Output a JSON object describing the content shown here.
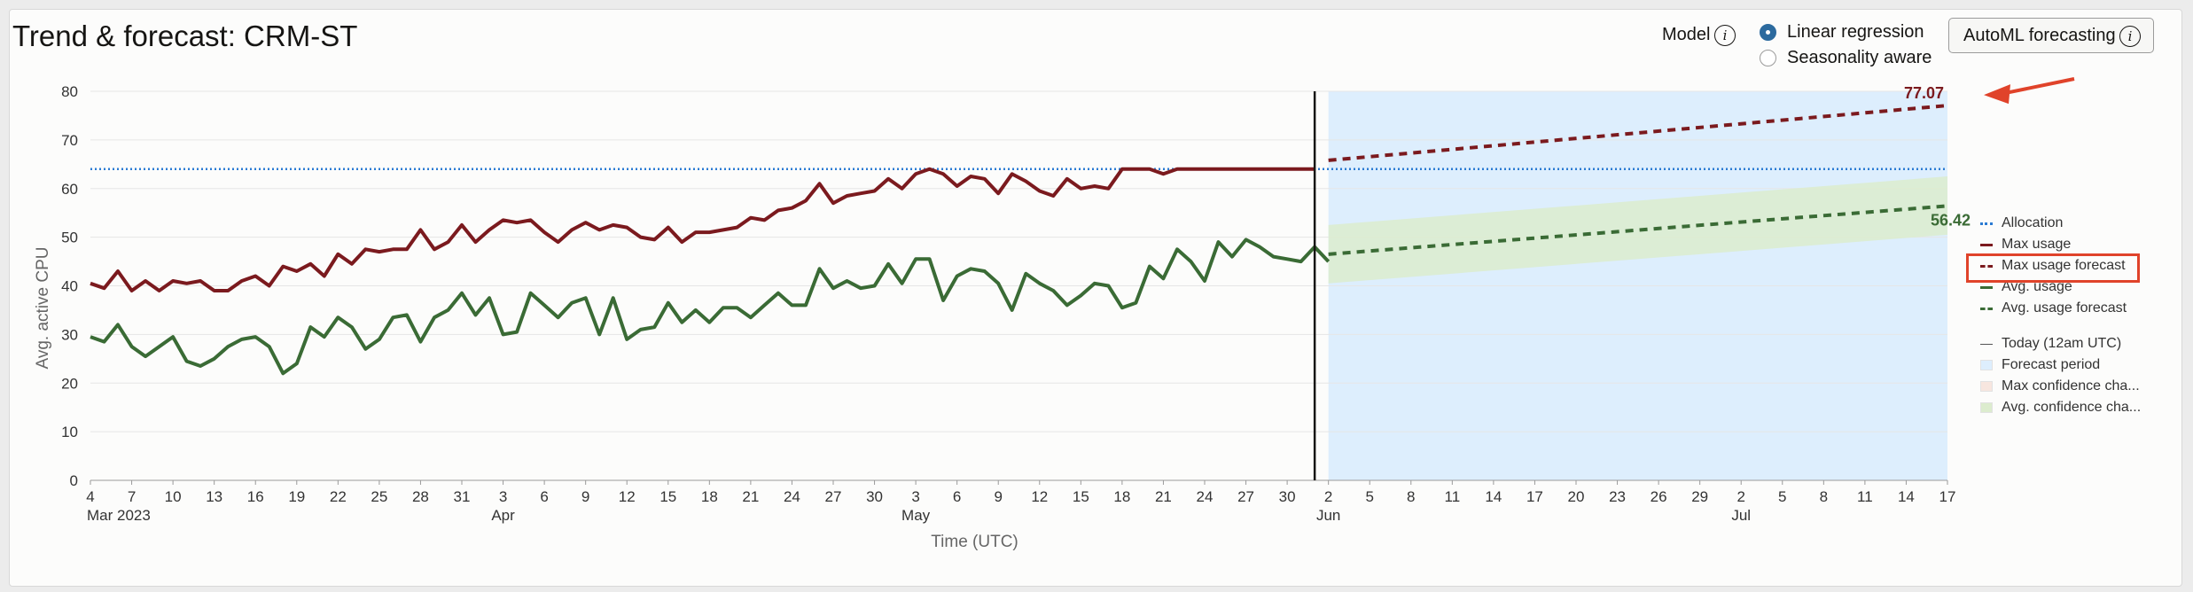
{
  "header": {
    "title": "Trend & forecast: CRM-ST",
    "model_label": "Model",
    "model_options": [
      {
        "label": "Linear regression",
        "selected": true
      },
      {
        "label": "Seasonality aware",
        "selected": false
      }
    ],
    "automl_button_label": "AutoML forecasting"
  },
  "colors": {
    "max_usage": "#7b1a1e",
    "avg_usage": "#3a6b35",
    "allocation": "#2b7bd3",
    "forecast_period": "#ddeefd",
    "avg_confidence": "#dcecce",
    "today_line": "#161513",
    "annotation_arrow": "#e0432a"
  },
  "legend": [
    {
      "label": "Allocation",
      "style": "dotted-line",
      "color": "#2b7bd3"
    },
    {
      "label": "Max usage",
      "style": "line",
      "color": "#7b1a1e"
    },
    {
      "label": "Max usage forecast",
      "style": "dashed-line",
      "color": "#7b1a1e",
      "highlighted": true
    },
    {
      "label": "Avg. usage",
      "style": "line",
      "color": "#3a6b35"
    },
    {
      "label": "Avg. usage forecast",
      "style": "dashed-line",
      "color": "#3a6b35"
    },
    {
      "label": "Today (12am UTC)",
      "style": "thin-line",
      "color": "#555555"
    },
    {
      "label": "Forecast period",
      "style": "box",
      "color": "#ddeefd"
    },
    {
      "label": "Max confidence cha...",
      "style": "box",
      "color": "#f7e6df"
    },
    {
      "label": "Avg. confidence cha...",
      "style": "box",
      "color": "#dcecce"
    }
  ],
  "chart_data": {
    "type": "line",
    "ylabel": "Avg. active CPU",
    "xlabel": "Time (UTC)",
    "ylim": [
      0,
      80
    ],
    "yticks": [
      0,
      10,
      20,
      30,
      40,
      50,
      60,
      70,
      80
    ],
    "x_start": "2023-03-04",
    "x_end": "2023-07-17",
    "today": "2023-06-01",
    "forecast_period": [
      "2023-06-02",
      "2023-07-17"
    ],
    "x_tick_labels": [
      "4",
      "7",
      "10",
      "13",
      "16",
      "19",
      "22",
      "25",
      "28",
      "31",
      "3",
      "6",
      "9",
      "12",
      "15",
      "18",
      "21",
      "24",
      "27",
      "30",
      "3",
      "6",
      "9",
      "12",
      "15",
      "18",
      "21",
      "24",
      "27",
      "30",
      "2",
      "5",
      "8",
      "11",
      "14",
      "17",
      "20",
      "23",
      "26",
      "29",
      "2",
      "5",
      "8",
      "11",
      "14",
      "17"
    ],
    "month_labels": [
      {
        "date": "2023-03-04",
        "label": "Mar 2023"
      },
      {
        "date": "2023-04-03",
        "label": "Apr"
      },
      {
        "date": "2023-05-03",
        "label": "May"
      },
      {
        "date": "2023-06-02",
        "label": "Jun"
      },
      {
        "date": "2023-07-02",
        "label": "Jul"
      }
    ],
    "allocation": 64,
    "series": [
      {
        "name": "Max usage",
        "values": [
          40.5,
          39.5,
          43,
          39,
          41,
          39,
          41,
          40.5,
          41,
          39,
          39,
          41,
          42,
          40,
          44,
          43,
          44.5,
          42,
          46.5,
          44.5,
          47.5,
          47,
          47.5,
          47.5,
          51.5,
          47.5,
          49,
          52.5,
          49,
          51.5,
          53.5,
          53,
          53.5,
          51,
          49,
          51.5,
          53,
          51.5,
          52.5,
          52,
          50,
          49.5,
          52,
          49,
          51,
          51,
          51.5,
          52,
          54,
          53.5,
          55.5,
          56,
          57.5,
          61,
          57,
          58.5,
          59,
          59.5,
          62,
          60,
          63,
          64,
          63,
          60.5,
          62.5,
          62,
          59,
          63,
          61.5,
          59.5,
          58.5,
          62,
          60,
          60.5,
          60,
          64,
          64,
          64,
          63,
          64,
          64,
          64,
          64,
          64,
          64,
          64,
          64,
          64,
          64,
          64
        ]
      },
      {
        "name": "Avg. usage",
        "values": [
          29.5,
          28.5,
          32,
          27.5,
          25.5,
          27.5,
          29.5,
          24.5,
          23.5,
          25,
          27.5,
          29,
          29.5,
          27.5,
          22,
          24,
          31.5,
          29.5,
          33.5,
          31.5,
          27,
          29,
          33.5,
          34,
          28.5,
          33.5,
          35,
          38.5,
          34,
          37.5,
          30,
          30.5,
          38.5,
          36,
          33.5,
          36.5,
          37.5,
          30,
          37.5,
          29,
          31,
          31.5,
          36.5,
          32.5,
          35,
          32.5,
          35.5,
          35.5,
          33.5,
          36,
          38.5,
          36,
          36,
          43.5,
          39.5,
          41,
          39.5,
          40,
          44.5,
          40.5,
          45.5,
          45.5,
          37,
          42,
          43.5,
          43,
          40.5,
          35,
          42.5,
          40.5,
          39,
          36,
          38,
          40.5,
          40,
          35.5,
          36.5,
          44,
          41.5,
          47.5,
          45,
          41,
          49,
          46,
          49.5,
          48,
          46,
          45.5,
          45,
          48,
          45
        ]
      },
      {
        "name": "Max usage forecast",
        "start_value": 65.8,
        "end_value": 77.07
      },
      {
        "name": "Avg. usage forecast",
        "start_value": 46.5,
        "end_value": 56.42,
        "band_start": [
          40.5,
          52.5
        ],
        "band_end": [
          50.5,
          62.5
        ]
      }
    ],
    "annotations": [
      {
        "label": "77.07",
        "series": "Max usage forecast"
      },
      {
        "label": "56.42",
        "series": "Avg. usage forecast"
      }
    ]
  }
}
